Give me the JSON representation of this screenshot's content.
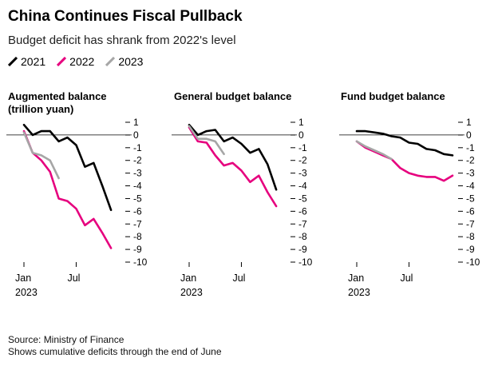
{
  "title": "China Continues Fiscal Pullback",
  "subtitle": "Budget deficit has shrank from 2022's level",
  "legend": [
    {
      "label": "2021",
      "color": "#000000"
    },
    {
      "label": "2022",
      "color": "#e6007e"
    },
    {
      "label": "2023",
      "color": "#a6a6a6"
    }
  ],
  "footer": {
    "source": "Source: Ministry of Finance",
    "note": "Shows cumulative deficits through the end of June"
  },
  "chart_data": [
    {
      "type": "line",
      "title_lines": [
        "Augmented balance",
        "(trillion yuan)"
      ],
      "x_ticks": [
        "Jan",
        "Jul"
      ],
      "x_year": "2023",
      "ylim": [
        -10,
        1
      ],
      "y_ticks": [
        "1",
        "0",
        "-1",
        "-2",
        "-3",
        "-4",
        "-5",
        "-6",
        "-7",
        "-8",
        "-9",
        "-10"
      ],
      "series": [
        {
          "name": "2021",
          "color": "#000000",
          "x": [
            1,
            2,
            3,
            4,
            5,
            6,
            7,
            8,
            9,
            10,
            11,
            12
          ],
          "values": [
            0.8,
            0.0,
            0.3,
            0.3,
            -0.5,
            -0.2,
            -0.8,
            -2.5,
            -2.2,
            -4.0,
            -5.9,
            null
          ]
        },
        {
          "name": "2022",
          "color": "#e6007e",
          "x": [
            1,
            2,
            3,
            4,
            5,
            6,
            7,
            8,
            9,
            10,
            11,
            12
          ],
          "values": [
            0.3,
            -1.4,
            -2.0,
            -2.9,
            -5.0,
            -5.2,
            -5.8,
            -7.1,
            -6.6,
            -7.7,
            -8.9,
            null
          ]
        },
        {
          "name": "2023",
          "color": "#a6a6a6",
          "x": [
            1,
            2,
            3,
            4,
            5,
            6
          ],
          "values": [
            0.2,
            -1.4,
            -1.6,
            -2.0,
            -3.4,
            null
          ]
        }
      ]
    },
    {
      "type": "line",
      "title_lines": [
        "General budget balance"
      ],
      "x_ticks": [
        "Jan",
        "Jul"
      ],
      "x_year": "2023",
      "ylim": [
        -10,
        1
      ],
      "y_ticks": [
        "1",
        "0",
        "-1",
        "-2",
        "-3",
        "-4",
        "-5",
        "-6",
        "-7",
        "-8",
        "-9",
        "-10"
      ],
      "series": [
        {
          "name": "2021",
          "color": "#000000",
          "x": [
            1,
            2,
            3,
            4,
            5,
            6,
            7,
            8,
            9,
            10,
            11,
            12
          ],
          "values": [
            0.8,
            0.0,
            0.3,
            0.4,
            -0.5,
            -0.2,
            -0.7,
            -1.4,
            -1.1,
            -2.3,
            -4.3,
            null
          ]
        },
        {
          "name": "2022",
          "color": "#e6007e",
          "x": [
            1,
            2,
            3,
            4,
            5,
            6,
            7,
            8,
            9,
            10,
            11,
            12
          ],
          "values": [
            0.6,
            -0.5,
            -0.6,
            -1.6,
            -2.4,
            -2.2,
            -2.8,
            -3.7,
            -3.2,
            -4.5,
            -5.6,
            null
          ]
        },
        {
          "name": "2023",
          "color": "#a6a6a6",
          "x": [
            1,
            2,
            3,
            4,
            5,
            6
          ],
          "values": [
            0.7,
            -0.3,
            -0.3,
            -0.5,
            -1.5,
            null
          ]
        }
      ]
    },
    {
      "type": "line",
      "title_lines": [
        "Fund budget balance"
      ],
      "x_ticks": [
        "Jan",
        "Jul"
      ],
      "x_year": "2023",
      "ylim": [
        -10,
        1
      ],
      "y_ticks": [
        "1",
        "0",
        "-1",
        "-2",
        "-3",
        "-4",
        "-5",
        "-6",
        "-7",
        "-8",
        "-9",
        "-10"
      ],
      "series": [
        {
          "name": "2021",
          "color": "#000000",
          "x": [
            1,
            2,
            3,
            4,
            5,
            6,
            7,
            8,
            9,
            10,
            11,
            12
          ],
          "values": [
            0.3,
            0.3,
            0.2,
            0.1,
            -0.1,
            -0.2,
            -0.6,
            -0.7,
            -1.1,
            -1.2,
            -1.5,
            -1.6
          ]
        },
        {
          "name": "2022",
          "color": "#e6007e",
          "x": [
            1,
            2,
            3,
            4,
            5,
            6,
            7,
            8,
            9,
            10,
            11,
            12
          ],
          "values": [
            -0.5,
            -1.0,
            -1.3,
            -1.6,
            -1.9,
            -2.6,
            -3.0,
            -3.2,
            -3.3,
            -3.3,
            -3.6,
            -3.2
          ]
        },
        {
          "name": "2023",
          "color": "#a6a6a6",
          "x": [
            1,
            2,
            3,
            4,
            5,
            6
          ],
          "values": [
            -0.5,
            -0.9,
            -1.2,
            -1.5,
            -1.9,
            null
          ]
        }
      ]
    }
  ]
}
